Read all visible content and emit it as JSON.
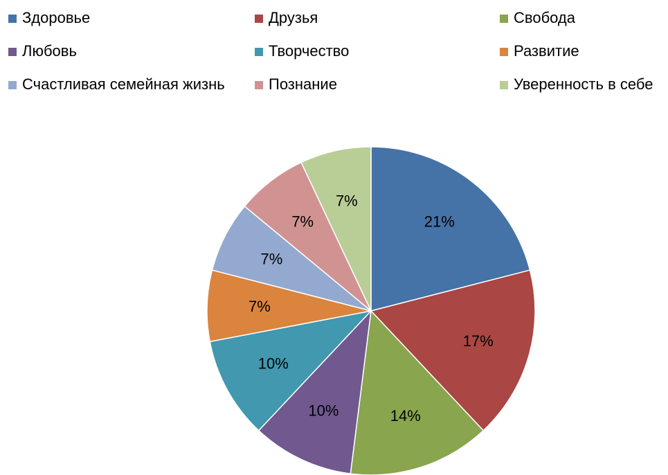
{
  "chart_data": {
    "type": "pie",
    "categories": [
      "Здоровье",
      "Друзья",
      "Свобода",
      "Любовь",
      "Творчество",
      "Развитие",
      "Счастливая семейная жизнь",
      "Познание",
      "Уверенность в себе"
    ],
    "values": [
      21,
      17,
      14,
      10,
      10,
      7,
      7,
      7,
      7
    ],
    "value_labels": [
      "21%",
      "17%",
      "14%",
      "10%",
      "10%",
      "7%",
      "7%",
      "7%",
      "7%"
    ],
    "colors": [
      "#4572a7",
      "#aa4643",
      "#89a54e",
      "#71588f",
      "#4198af",
      "#db843d",
      "#93a9cf",
      "#d19392",
      "#b9cd96"
    ],
    "legend": "top"
  }
}
